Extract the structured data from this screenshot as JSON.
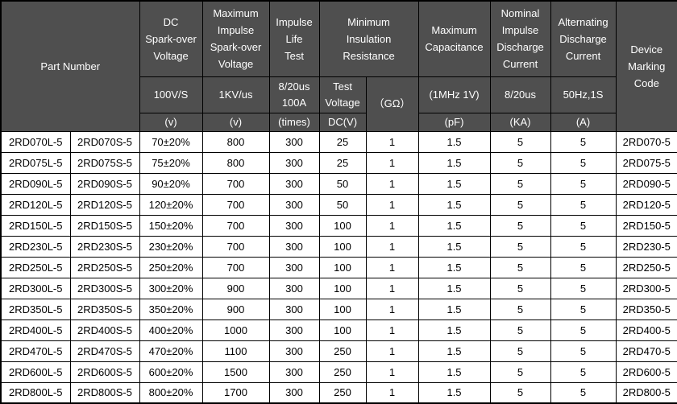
{
  "colors": {
    "header_bg": "#4f4f4f",
    "header_text": "#ffffff",
    "body_bg": "#ffffff",
    "body_text": "#000000",
    "grid_border": "#000000"
  },
  "table": {
    "header": {
      "part_number": "Part Number",
      "dc_spark_over": {
        "title": "DC\nSpark-over\nVoltage",
        "condition": "100V/S",
        "unit": "(v)"
      },
      "max_impulse_spark_over": {
        "title": "Maximum\nImpulse\nSpark-over\nVoltage",
        "condition": "1KV/us",
        "unit": "(v)"
      },
      "impulse_life_test": {
        "title": "Impulse\nLife\nTest",
        "condition": "8/20us\n100A",
        "unit": "(times)"
      },
      "min_insulation_resistance": {
        "title": "Minimum\nInsulation\nResistance",
        "test_voltage": "Test\nVoltage",
        "test_voltage_unit": "DC(V)",
        "resistance_unit": "（GΩ）"
      },
      "max_capacitance": {
        "title": "Maximum\nCapacitance",
        "condition": "(1MHz 1V)",
        "unit": "(pF)"
      },
      "nominal_impulse_discharge": {
        "title": "Nominal\nImpulse\nDischarge\nCurrent",
        "condition": "8/20us",
        "unit": "(KA)"
      },
      "alternating_discharge": {
        "title": "Alternating\nDischarge\nCurrent",
        "condition": "50Hz,1S",
        "unit": "(A)"
      },
      "device_marking_code": "Device\nMarking\nCode"
    },
    "rows": [
      [
        "2RD070L-5",
        "2RD070S-5",
        "70±20%",
        "800",
        "300",
        "25",
        "1",
        "1.5",
        "5",
        "5",
        "2RD070-5"
      ],
      [
        "2RD075L-5",
        "2RD075S-5",
        "75±20%",
        "800",
        "300",
        "25",
        "1",
        "1.5",
        "5",
        "5",
        "2RD075-5"
      ],
      [
        "2RD090L-5",
        "2RD090S-5",
        "90±20%",
        "700",
        "300",
        "50",
        "1",
        "1.5",
        "5",
        "5",
        "2RD090-5"
      ],
      [
        "2RD120L-5",
        "2RD120S-5",
        "120±20%",
        "700",
        "300",
        "50",
        "1",
        "1.5",
        "5",
        "5",
        "2RD120-5"
      ],
      [
        "2RD150L-5",
        "2RD150S-5",
        "150±20%",
        "700",
        "300",
        "100",
        "1",
        "1.5",
        "5",
        "5",
        "2RD150-5"
      ],
      [
        "2RD230L-5",
        "2RD230S-5",
        "230±20%",
        "700",
        "300",
        "100",
        "1",
        "1.5",
        "5",
        "5",
        "2RD230-5"
      ],
      [
        "2RD250L-5",
        "2RD250S-5",
        "250±20%",
        "700",
        "300",
        "100",
        "1",
        "1.5",
        "5",
        "5",
        "2RD250-5"
      ],
      [
        "2RD300L-5",
        "2RD300S-5",
        "300±20%",
        "900",
        "300",
        "100",
        "1",
        "1.5",
        "5",
        "5",
        "2RD300-5"
      ],
      [
        "2RD350L-5",
        "2RD350S-5",
        "350±20%",
        "900",
        "300",
        "100",
        "1",
        "1.5",
        "5",
        "5",
        "2RD350-5"
      ],
      [
        "2RD400L-5",
        "2RD400S-5",
        "400±20%",
        "1000",
        "300",
        "100",
        "1",
        "1.5",
        "5",
        "5",
        "2RD400-5"
      ],
      [
        "2RD470L-5",
        "2RD470S-5",
        "470±20%",
        "1100",
        "300",
        "250",
        "1",
        "1.5",
        "5",
        "5",
        "2RD470-5"
      ],
      [
        "2RD600L-5",
        "2RD600S-5",
        "600±20%",
        "1500",
        "300",
        "250",
        "1",
        "1.5",
        "5",
        "5",
        "2RD600-5"
      ],
      [
        "2RD800L-5",
        "2RD800S-5",
        "800±20%",
        "1700",
        "300",
        "250",
        "1",
        "1.5",
        "5",
        "5",
        "2RD800-5"
      ]
    ]
  }
}
